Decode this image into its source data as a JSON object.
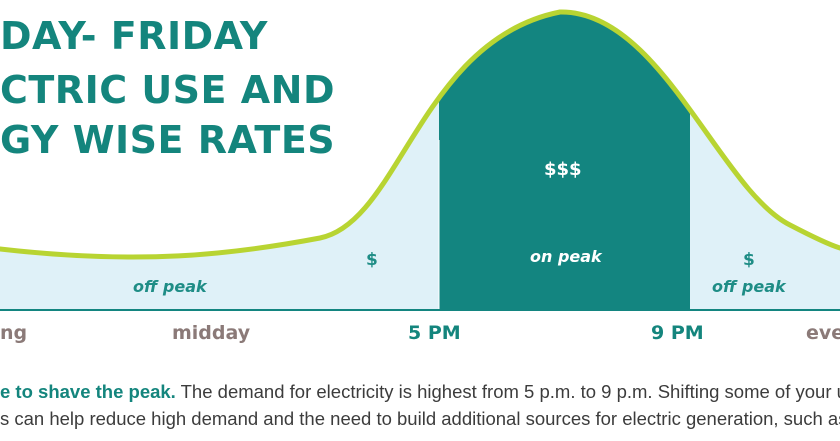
{
  "title_lines": [
    "DAY- FRIDAY",
    "CTRIC USE AND",
    "GY WISE RATES"
  ],
  "regions": {
    "off_peak_left": "off peak",
    "dollar_left": "$",
    "on_peak_dollars": "$$$",
    "on_peak": "on peak",
    "dollar_right": "$",
    "off_peak_right": "off peak"
  },
  "x_labels": {
    "morning": "ng",
    "midday": "midday",
    "five_pm": "5 PM",
    "nine_pm": "9 PM",
    "evening": "eve"
  },
  "body": {
    "line1_bold": "e to shave the peak.",
    "line1_rest": " The demand for electricity is highest from 5 p.m. to 9 p.m. Shifting some of your u",
    "line2": "s can help reduce high demand and the need to build additional sources for electric generation, such as p"
  },
  "colors": {
    "curve": "#b8d432",
    "on_peak_fill": "#138580",
    "off_peak_fill": "#dff1f8",
    "title": "#14857d"
  }
}
